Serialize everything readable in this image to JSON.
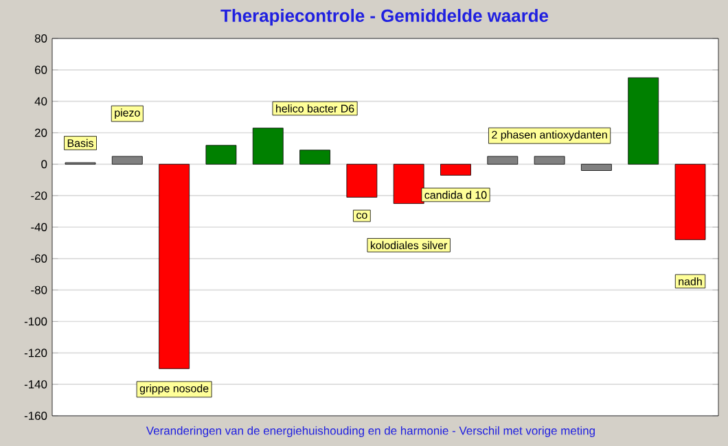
{
  "chart_data": {
    "type": "bar",
    "title": "Therapiecontrole - Gemiddelde waarde",
    "categories": [
      "Basis",
      "piezo",
      "grippe nosode",
      null,
      null,
      "helico bacter D6",
      "co",
      "kolodiales silver",
      "candida d 10",
      null,
      "2 phasen antioxydanten",
      null,
      null,
      "nadh"
    ],
    "values": [
      1,
      5,
      -130,
      12,
      23,
      9,
      -21,
      -25,
      -7,
      5,
      5,
      -4,
      55,
      -48
    ],
    "colors": [
      "#808080",
      "#808080",
      "#ff0000",
      "#008000",
      "#008000",
      "#008000",
      "#ff0000",
      "#ff0000",
      "#ff0000",
      "#808080",
      "#808080",
      "#808080",
      "#008000",
      "#ff0000"
    ],
    "ylim": [
      -160,
      80
    ],
    "yticks": [
      -160,
      -140,
      -120,
      -100,
      -80,
      -60,
      -40,
      -20,
      0,
      20,
      40,
      60,
      80
    ],
    "grid": "y",
    "annotations": [
      "Veranderingen  van de energiehuishouding en de harmonie - Verschil met vorige meting"
    ]
  }
}
